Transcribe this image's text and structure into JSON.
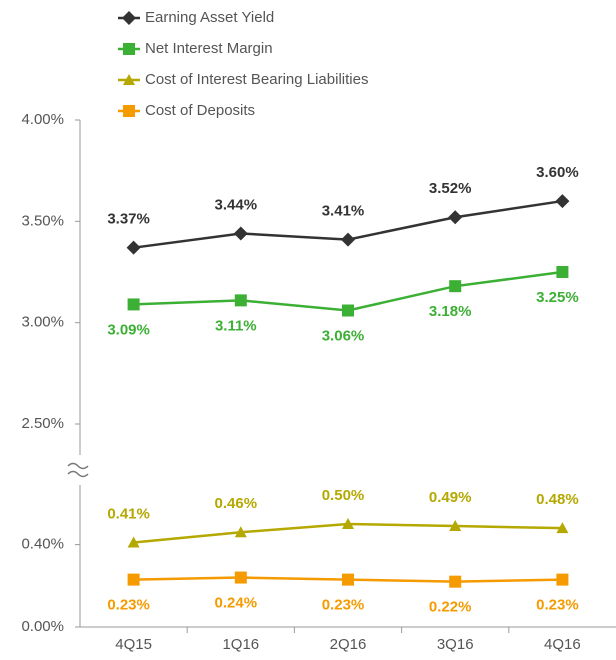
{
  "chart_data": [
    {
      "type": "line",
      "series": [
        {
          "name": "Earning Asset Yield",
          "color": "#333333",
          "marker": "diamond",
          "label_position": "above",
          "values": [
            3.37,
            3.44,
            3.41,
            3.52,
            3.6
          ],
          "value_labels": [
            "3.37%",
            "3.44%",
            "3.41%",
            "3.52%",
            "3.60%"
          ]
        },
        {
          "name": "Net Interest Margin",
          "color": "#3cb034",
          "marker": "square",
          "label_position": "below",
          "values": [
            3.09,
            3.11,
            3.06,
            3.18,
            3.25
          ],
          "value_labels": [
            "3.09%",
            "3.11%",
            "3.06%",
            "3.18%",
            "3.25%"
          ]
        }
      ],
      "ylim": [
        2.5,
        4.0
      ],
      "yticks": [
        {
          "value": 2.5,
          "label": "2.50%"
        },
        {
          "value": 3.0,
          "label": "3.00%"
        },
        {
          "value": 3.5,
          "label": "3.50%"
        },
        {
          "value": 4.0,
          "label": "4.00%"
        }
      ]
    },
    {
      "type": "line",
      "categories": [
        "4Q15",
        "1Q16",
        "2Q16",
        "3Q16",
        "4Q16"
      ],
      "series": [
        {
          "name": "Cost of Interest Bearing Liabilities",
          "color": "#b5a800",
          "marker": "triangle",
          "label_position": "above",
          "values": [
            0.41,
            0.46,
            0.5,
            0.49,
            0.48
          ],
          "value_labels": [
            "0.41%",
            "0.46%",
            "0.50%",
            "0.49%",
            "0.48%"
          ]
        },
        {
          "name": "Cost of Deposits",
          "color": "#f59b00",
          "marker": "square",
          "label_position": "below",
          "values": [
            0.23,
            0.24,
            0.23,
            0.22,
            0.23
          ],
          "value_labels": [
            "0.23%",
            "0.24%",
            "0.23%",
            "0.22%",
            "0.23%"
          ]
        }
      ],
      "ylim": [
        0,
        0.5
      ],
      "yticks": [
        {
          "value": 0,
          "label": "0.00%"
        },
        {
          "value": 0.4,
          "label": "0.40%"
        }
      ]
    }
  ]
}
